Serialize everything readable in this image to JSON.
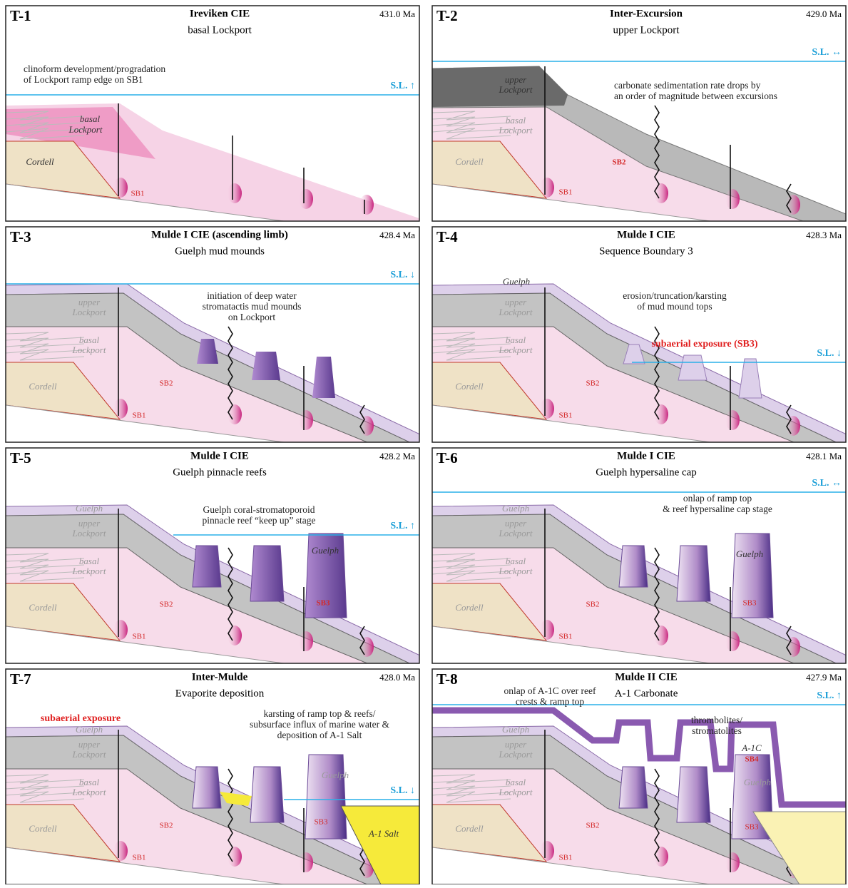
{
  "panels": [
    {
      "id": "T-1",
      "title": "Ireviken CIE",
      "subtitle": "basal Lockport",
      "age": "431.0 Ma",
      "sea_level": "S.L. ↑",
      "notes": [
        [
          "clinoform development/progradation",
          "of Lockport ramp edge on SB1"
        ]
      ],
      "labels": [
        "basal",
        "Lockport",
        "Cordell",
        "SB1"
      ]
    },
    {
      "id": "T-2",
      "title": "Inter-Excursion",
      "subtitle": "upper Lockport",
      "age": "429.0 Ma",
      "sea_level": "S.L. ↔",
      "notes": [
        [
          "carbonate sedimentation rate drops by",
          "an order of magnitude between excursions"
        ]
      ],
      "labels": [
        "upper",
        "Lockport",
        "basal",
        "Lockport",
        "Cordell",
        "SB2",
        "SB1"
      ]
    },
    {
      "id": "T-3",
      "title": "Mulde I CIE  (ascending limb)",
      "subtitle": "Guelph mud mounds",
      "age": "428.4 Ma",
      "sea_level": "S.L. ↓",
      "notes": [
        [
          "initiation of deep water",
          "stromatactis mud mounds",
          "on Lockport"
        ]
      ],
      "labels": [
        "upper",
        "Lockport",
        "basal",
        "Lockport",
        "Cordell",
        "SB2",
        "SB1"
      ]
    },
    {
      "id": "T-4",
      "title": "Mulde I CIE",
      "subtitle": "Sequence Boundary 3",
      "age": "428.3 Ma",
      "sea_level": "S.L. ↓",
      "notes": [
        [
          "erosion/truncation/karsting",
          "of mud mound tops"
        ]
      ],
      "labels": [
        "Guelph",
        "upper",
        "Lockport",
        "basal",
        "Lockport",
        "Cordell",
        "SB2",
        "SB1",
        "subaerial exposure (SB3)"
      ]
    },
    {
      "id": "T-5",
      "title": "Mulde I CIE",
      "subtitle": "Guelph pinnacle reefs",
      "age": "428.2 Ma",
      "sea_level": "S.L. ↑",
      "notes": [
        [
          "Guelph coral-stromatoporoid",
          "pinnacle reef “keep up” stage"
        ]
      ],
      "labels": [
        "Guelph",
        "upper",
        "Lockport",
        "basal",
        "Lockport",
        "Cordell",
        "SB2",
        "SB1",
        "Guelph",
        "SB3"
      ]
    },
    {
      "id": "T-6",
      "title": "Mulde I CIE",
      "subtitle": "Guelph hypersaline cap",
      "age": "428.1 Ma",
      "sea_level": "S.L. ↔",
      "notes": [
        [
          "onlap of ramp top",
          "& reef hypersaline cap stage"
        ]
      ],
      "labels": [
        "Guelph",
        "upper",
        "Lockport",
        "basal",
        "Lockport",
        "Cordell",
        "SB2",
        "SB1",
        "Guelph",
        "SB3"
      ]
    },
    {
      "id": "T-7",
      "title": "Inter-Mulde",
      "subtitle": "Evaporite deposition",
      "age": "428.0 Ma",
      "sea_level": "S.L. ↓",
      "notes": [
        [
          "karsting of ramp top & reefs/",
          "subsurface influx of marine water &",
          "deposition of A-1 Salt"
        ]
      ],
      "labels": [
        "subaerial exposure",
        "Guelph",
        "upper",
        "Lockport",
        "basal",
        "Lockport",
        "Cordell",
        "SB2",
        "SB1",
        "Guelph",
        "SB3",
        "A-1 Salt"
      ]
    },
    {
      "id": "T-8",
      "title": "Mulde II CIE",
      "subtitle": "A-1 Carbonate",
      "age": "427.9 Ma",
      "sea_level": "S.L. ↑",
      "notes": [
        [
          "onlap of A-1C over reef",
          "crests & ramp top"
        ],
        [
          "thrombolites/",
          "stromatolites"
        ]
      ],
      "labels": [
        "Guelph",
        "upper",
        "Lockport",
        "basal",
        "Lockport",
        "Cordell",
        "A-1C",
        "SB4",
        "Guelph",
        "SB2",
        "SB3",
        "SB1"
      ]
    }
  ]
}
